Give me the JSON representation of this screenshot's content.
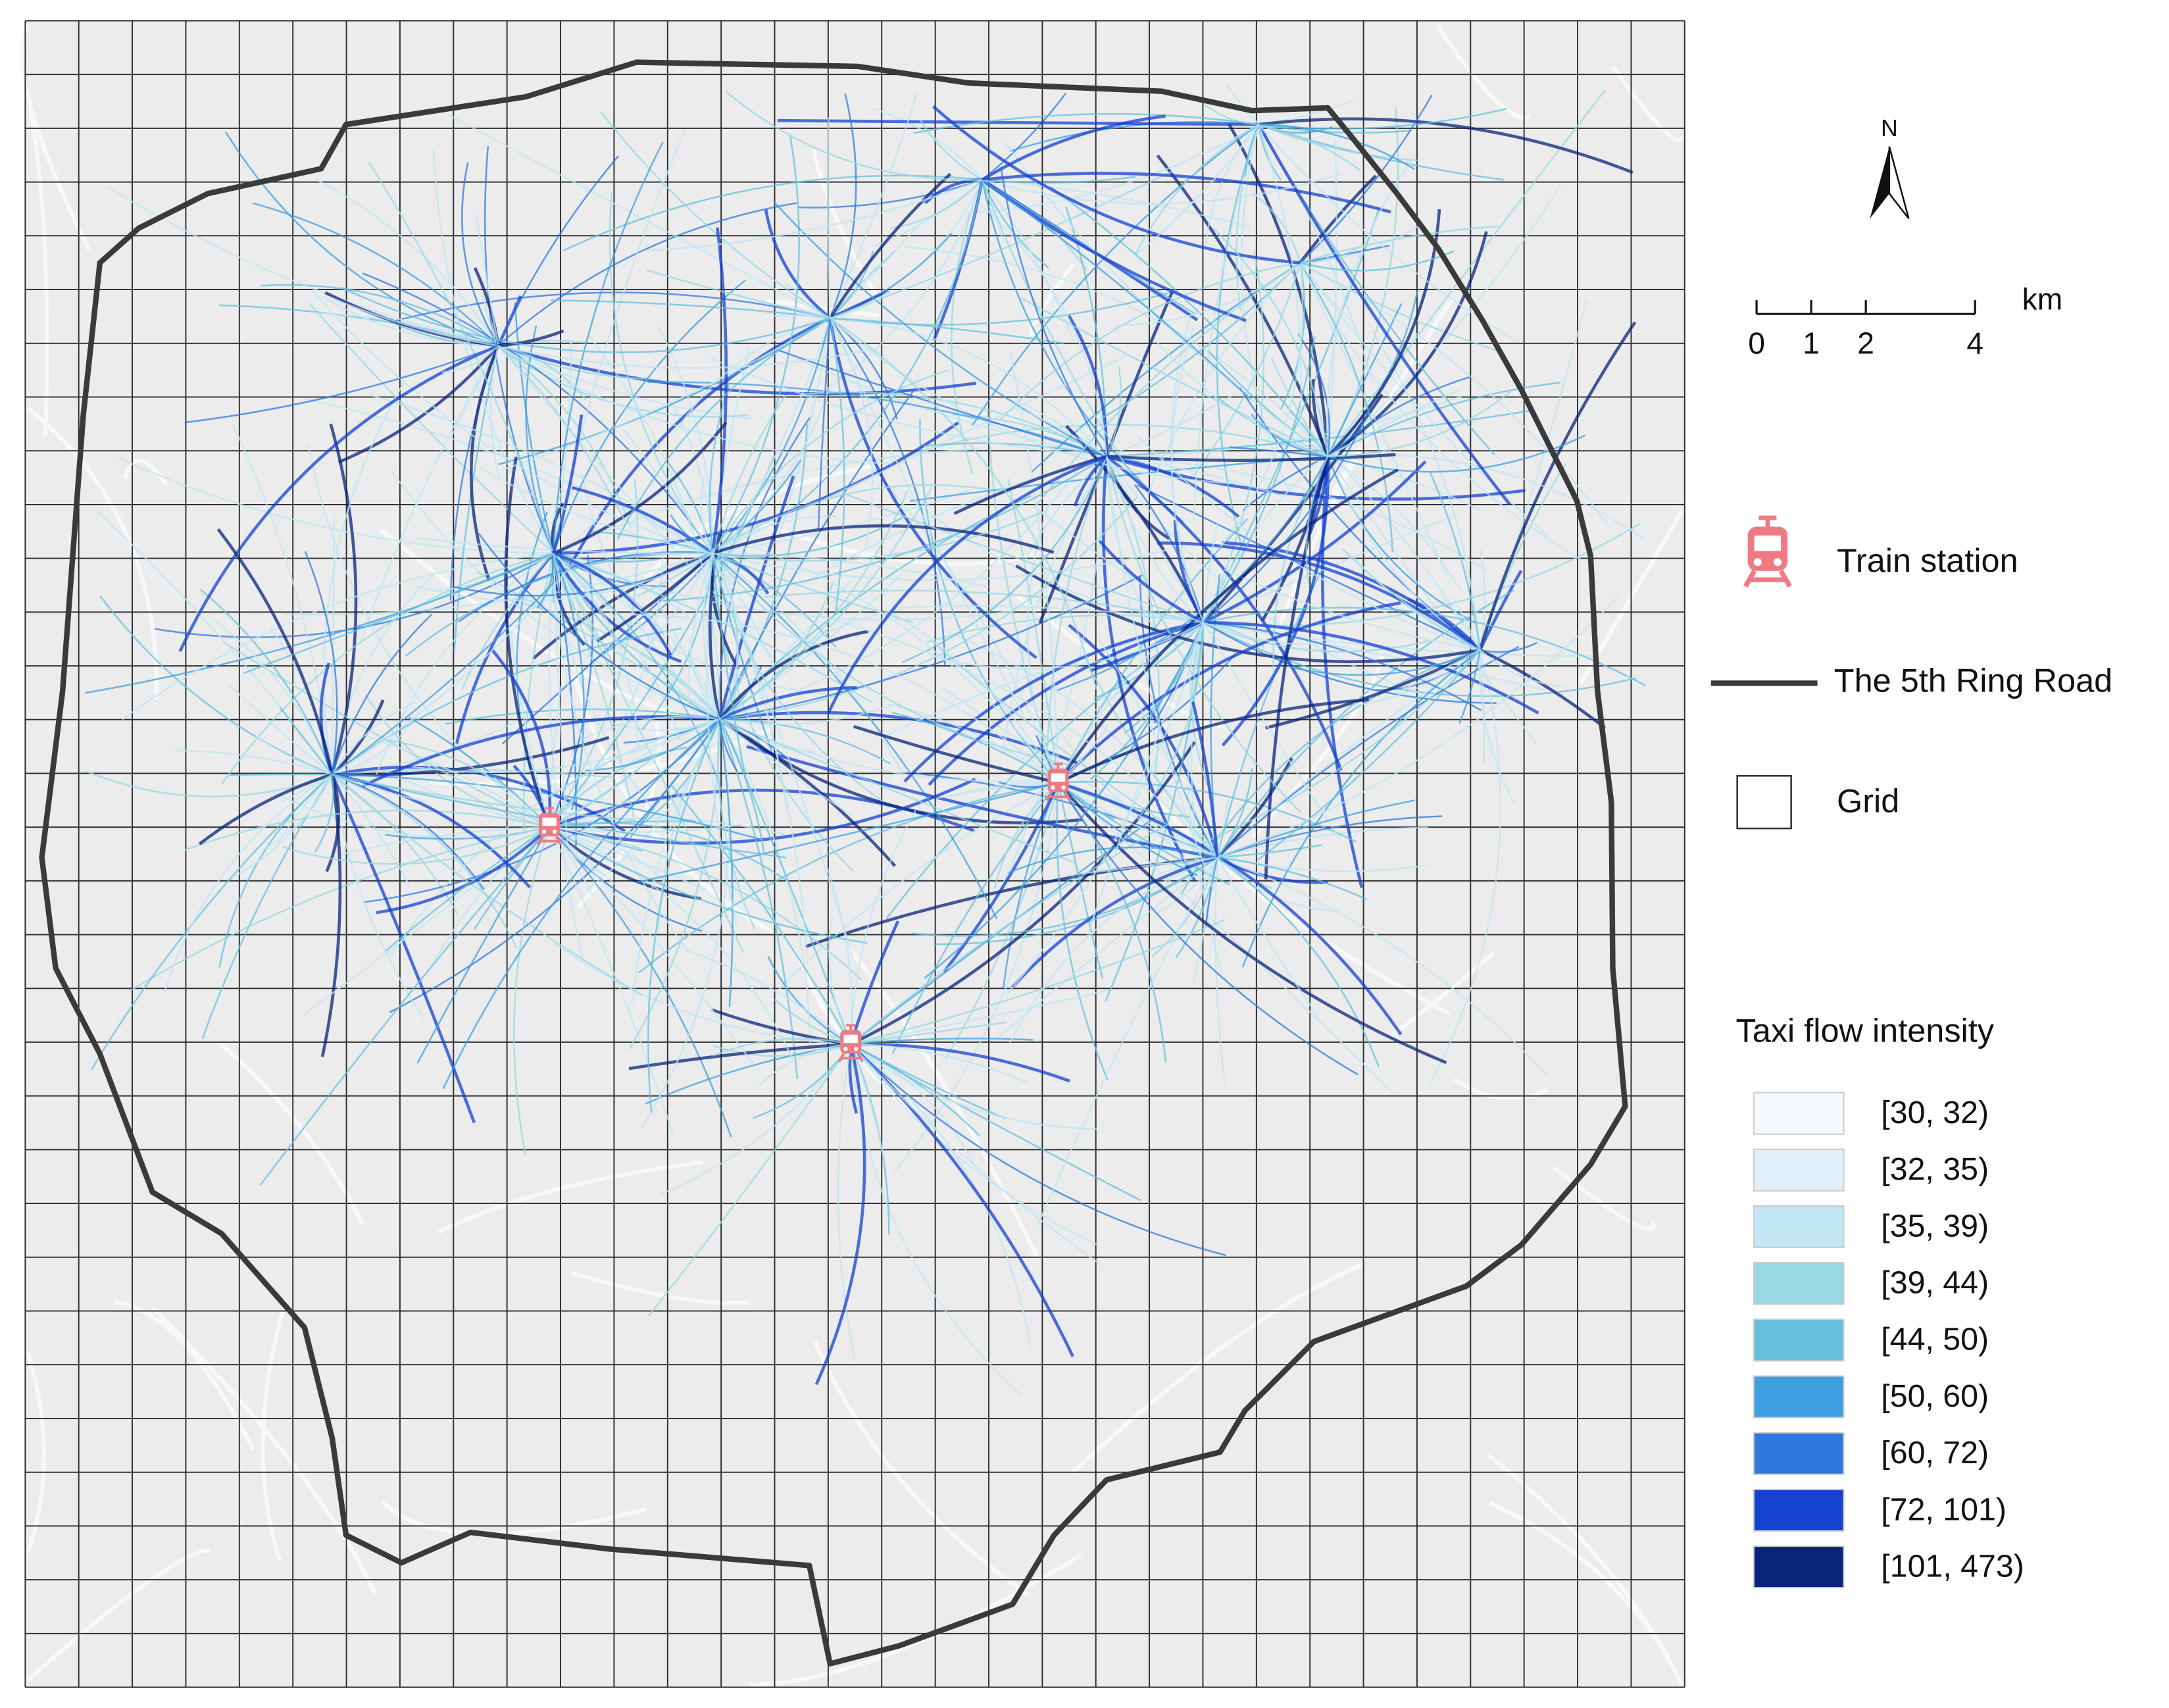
{
  "north_arrow": {
    "label": "N"
  },
  "scale_bar": {
    "ticks": [
      0,
      1,
      2,
      4
    ],
    "unit": "km"
  },
  "legend": {
    "items": [
      {
        "label": "Train station"
      },
      {
        "label": "The 5th Ring Road"
      },
      {
        "label": "Grid"
      }
    ]
  },
  "flow_legend": {
    "title": "Taxi flow intensity",
    "classes": [
      {
        "label": "[30, 32)",
        "color": "#f5fafd"
      },
      {
        "label": "[32, 35)",
        "color": "#dff0fa"
      },
      {
        "label": "[35, 39)",
        "color": "#c0e5f3"
      },
      {
        "label": "[39, 44)",
        "color": "#98d8e3"
      },
      {
        "label": "[44, 50)",
        "color": "#65c0de"
      },
      {
        "label": "[50, 60)",
        "color": "#3e9fe0"
      },
      {
        "label": "[60, 72)",
        "color": "#2f78e0"
      },
      {
        "label": "[72, 101)",
        "color": "#1441d0"
      },
      {
        "label": "[101, 473)",
        "color": "#0a237a"
      }
    ]
  }
}
